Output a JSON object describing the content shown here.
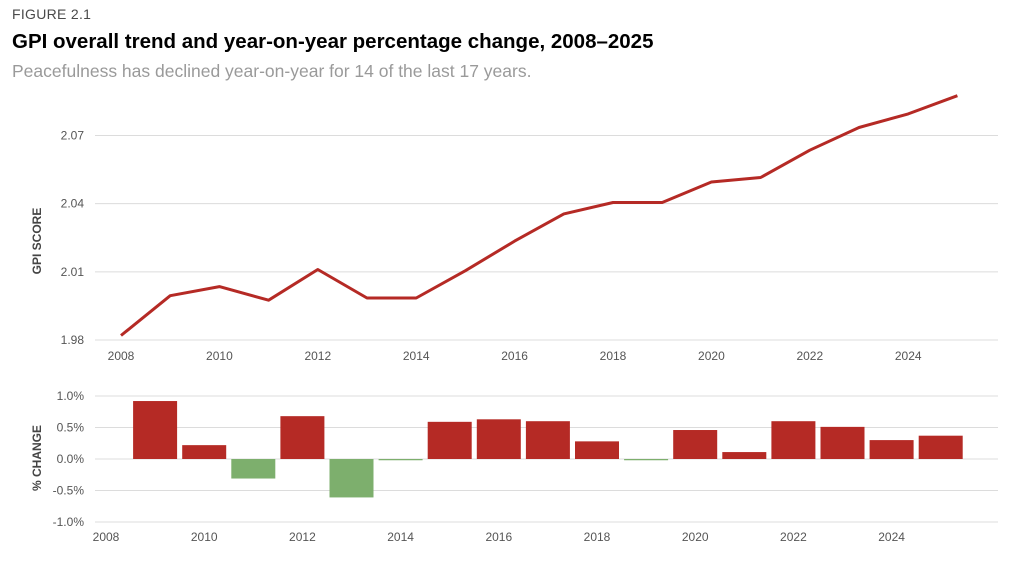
{
  "figure_label": "FIGURE 2.1",
  "title": "GPI overall trend and year-on-year percentage change, 2008–2025",
  "subtitle": "Peacefulness has declined year-on-year for 14 of the last 17 years.",
  "colors": {
    "line": "#b52a25",
    "bar_positive": "#b52a25",
    "bar_negative": "#7daf6d",
    "grid": "#dcdcdc"
  },
  "chart_data": [
    {
      "type": "line",
      "ylabel": "GPI SCORE",
      "ylim": [
        1.98,
        2.09
      ],
      "yticks": [
        "2.07",
        "2.04",
        "2.01",
        "1.98"
      ],
      "ytick_values": [
        2.07,
        2.04,
        2.01,
        1.98
      ],
      "xticks": [
        "2008",
        "2010",
        "2012",
        "2014",
        "2016",
        "2018",
        "2020",
        "2022",
        "2024"
      ],
      "xtick_values": [
        2008,
        2010,
        2012,
        2014,
        2016,
        2018,
        2020,
        2022,
        2024
      ],
      "grid": true,
      "series": [
        {
          "x": [
            2008,
            2009,
            2010,
            2011,
            2012,
            2013,
            2014,
            2015,
            2016,
            2017,
            2018,
            2019,
            2020,
            2021,
            2022,
            2023,
            2024,
            2025
          ],
          "values": [
            1.982,
            1.9995,
            2.0035,
            1.9975,
            2.011,
            1.9985,
            1.9985,
            2.0105,
            2.0235,
            2.0355,
            2.0405,
            2.0405,
            2.0495,
            2.0515,
            2.0635,
            2.0735,
            2.0795,
            2.0875
          ]
        }
      ]
    },
    {
      "type": "bar",
      "ylabel": "% CHANGE",
      "ylim": [
        -1.0,
        1.0
      ],
      "yticks": [
        "1.0%",
        "0.5%",
        "0.0%",
        "-0.5%",
        "-1.0%"
      ],
      "ytick_values": [
        1.0,
        0.5,
        0.0,
        -0.5,
        -1.0
      ],
      "xticks": [
        "2008",
        "2010",
        "2012",
        "2014",
        "2016",
        "2018",
        "2020",
        "2022",
        "2024"
      ],
      "xtick_values": [
        2008,
        2010,
        2012,
        2014,
        2016,
        2018,
        2020,
        2022,
        2024
      ],
      "grid": true,
      "categories": [
        2009,
        2010,
        2011,
        2012,
        2013,
        2014,
        2015,
        2016,
        2017,
        2018,
        2019,
        2020,
        2021,
        2022,
        2023,
        2024,
        2025
      ],
      "values": [
        0.92,
        0.22,
        -0.31,
        0.68,
        -0.61,
        -0.02,
        0.59,
        0.63,
        0.6,
        0.28,
        -0.02,
        0.46,
        0.11,
        0.6,
        0.51,
        0.3,
        0.37
      ]
    }
  ]
}
